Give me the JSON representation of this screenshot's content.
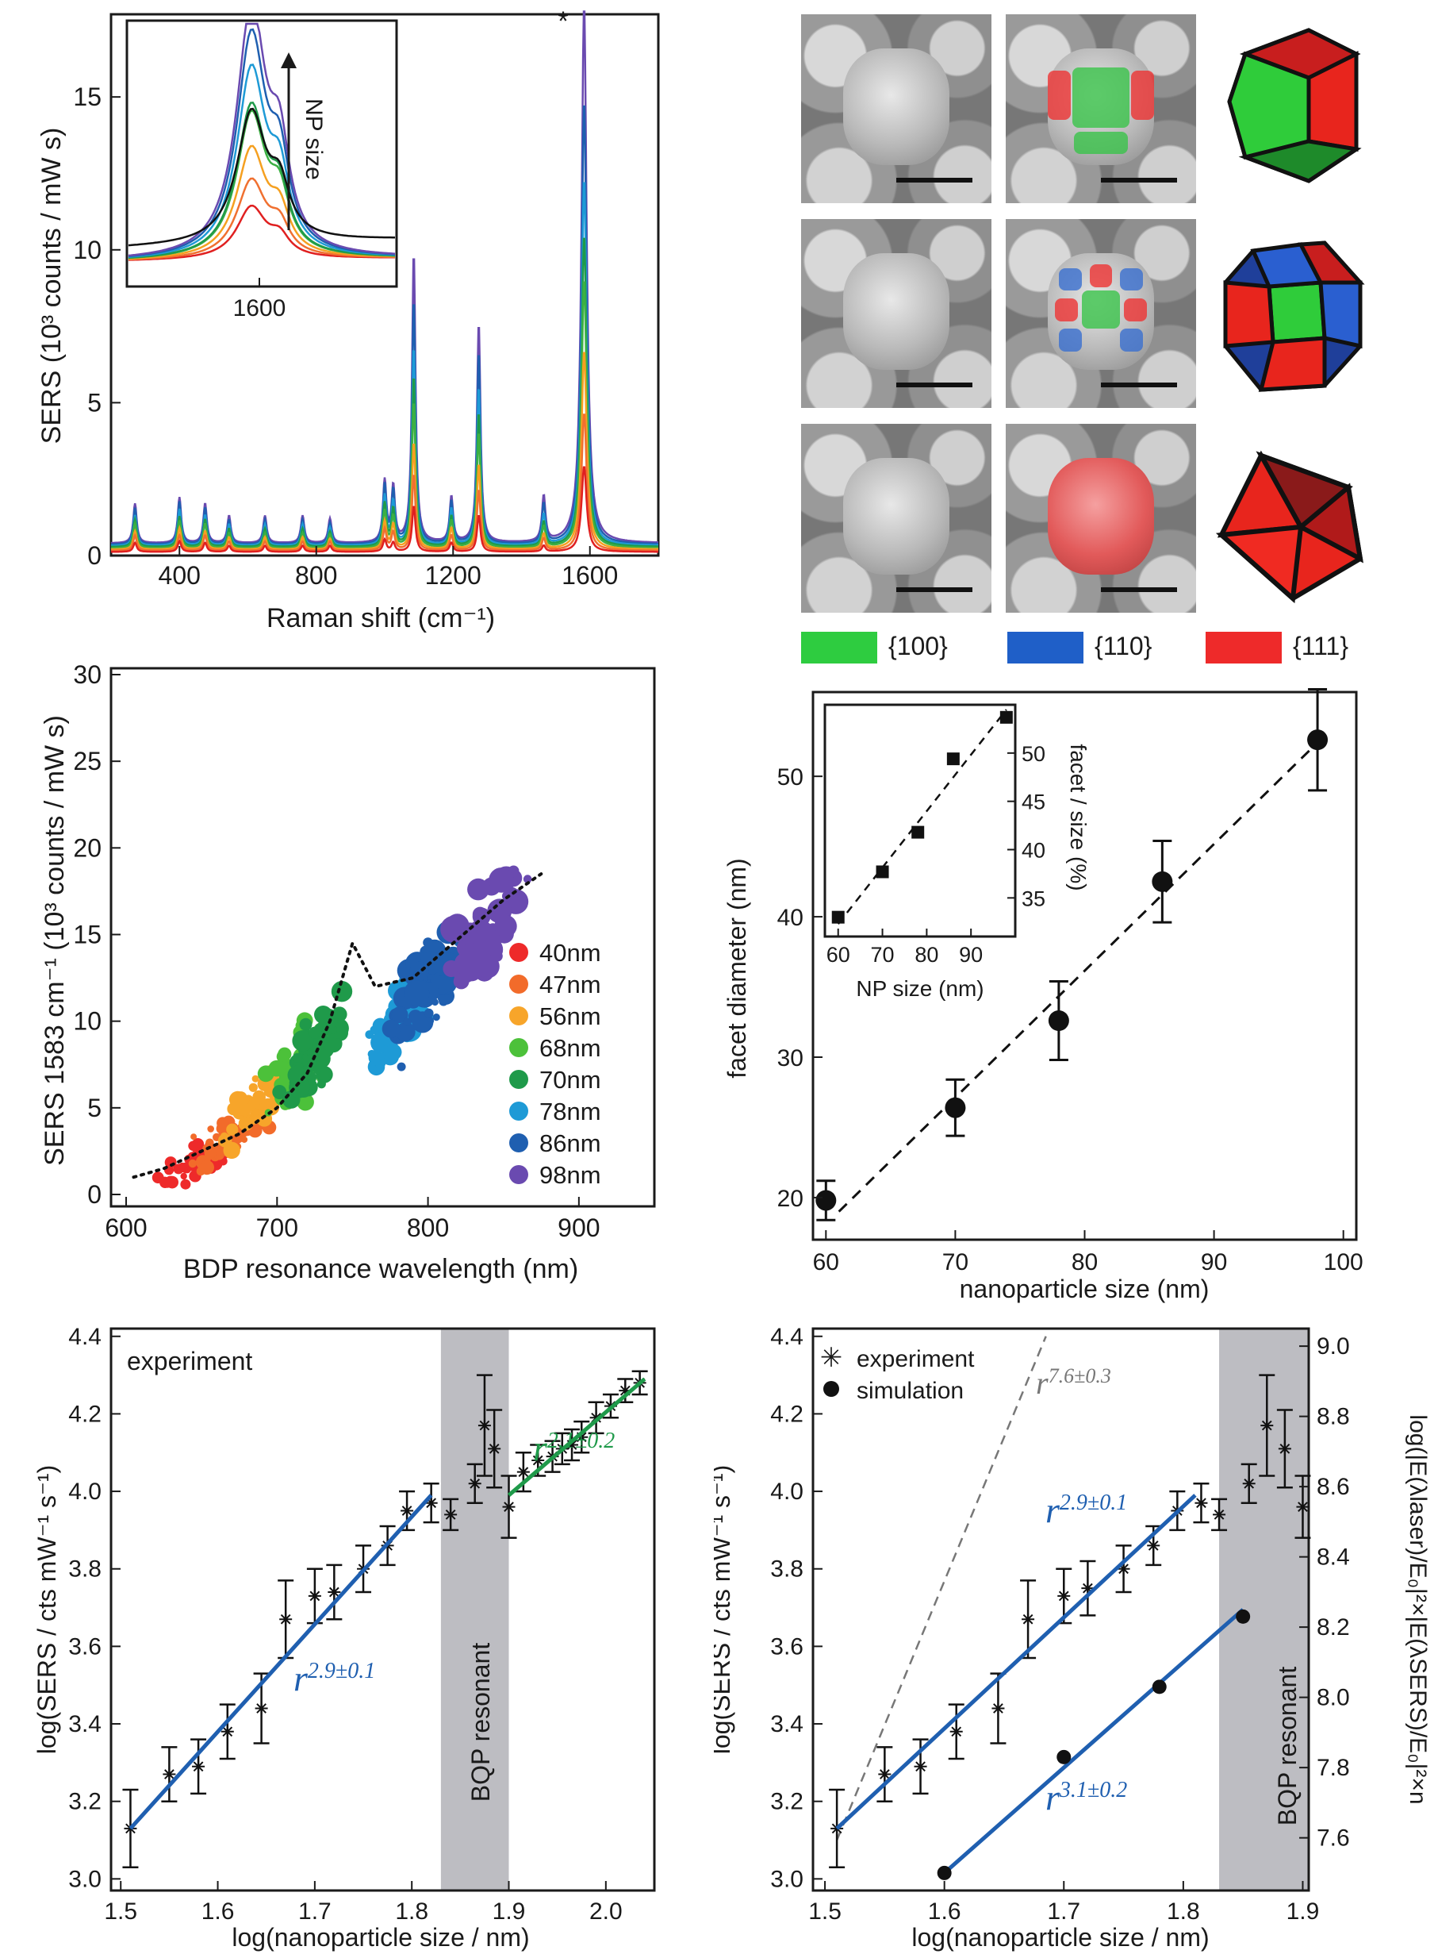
{
  "panel_a": {
    "ylabel": "SERS  (10³ counts / mW s)",
    "xlabel": "Raman shift (cm⁻¹)",
    "star": "*",
    "xticks": [
      "400",
      "800",
      "1200",
      "1600"
    ],
    "yticks": [
      "0",
      "5",
      "10",
      "15"
    ],
    "inset_xtick": "1600",
    "inset_label": "NP size",
    "colors": [
      "#e02020",
      "#f07030",
      "#f5a020",
      "#3cb043",
      "#1f9a4a",
      "#1e9ad6",
      "#1f5fb0",
      "#6a4ab0",
      "#111111"
    ]
  },
  "panel_b": {
    "legend": [
      {
        "label": "{100}",
        "color": "#2ecc40"
      },
      {
        "label": "{110}",
        "color": "#1f5fc8"
      },
      {
        "label": "{111}",
        "color": "#ee2a2a"
      }
    ]
  },
  "panel_c": {
    "ylabel": "SERS 1583 cm⁻¹ (10³ counts / mW s)",
    "xlabel": "BDP resonance wavelength (nm)",
    "xticks": [
      "600",
      "700",
      "800",
      "900"
    ],
    "yticks": [
      "0",
      "5",
      "10",
      "15",
      "20",
      "25",
      "30"
    ],
    "legend": [
      {
        "label": "40nm",
        "color": "#ee2a2a"
      },
      {
        "label": "47nm",
        "color": "#f26b2a"
      },
      {
        "label": "56nm",
        "color": "#f7a52a"
      },
      {
        "label": "68nm",
        "color": "#4cc13a"
      },
      {
        "label": "70nm",
        "color": "#1f9a4a"
      },
      {
        "label": "78nm",
        "color": "#1e9ad6"
      },
      {
        "label": "86nm",
        "color": "#1f5fb0"
      },
      {
        "label": "98nm",
        "color": "#6a4ab0"
      }
    ]
  },
  "panel_d": {
    "ylabel": "facet diameter (nm)",
    "xlabel": "nanoparticle size (nm)",
    "xticks": [
      "60",
      "70",
      "80",
      "90",
      "100"
    ],
    "yticks": [
      "20",
      "30",
      "40",
      "50"
    ],
    "inset_ylabel": "facet / size (%)",
    "inset_xlabel": "NP size (nm)",
    "inset_xticks": [
      "60",
      "70",
      "80",
      "90"
    ],
    "inset_yticks": [
      "35",
      "40",
      "45",
      "50"
    ]
  },
  "panel_e": {
    "ylabel": "log(SERS / cts mW⁻¹ s⁻¹)",
    "xlabel": "log(nanoparticle size / nm)",
    "label": "experiment",
    "band_label": "BQP resonant",
    "fit_blue": "r",
    "fit_blue_exp": "2.9±0.1",
    "fit_green": "r",
    "fit_green_exp": "2.1±0.2",
    "xticks": [
      "1.5",
      "1.6",
      "1.7",
      "1.8",
      "1.9",
      "2.0"
    ],
    "yticks": [
      "3.0",
      "3.2",
      "3.4",
      "3.6",
      "3.8",
      "4.0",
      "4.2",
      "4.4"
    ]
  },
  "panel_f": {
    "ylabel": "log(SERS / cts mW⁻¹ s⁻¹)",
    "ylabel_right": "log(|E(λlaser)/E₀|²×|E(λSERS)/E₀|²×n",
    "xlabel": "log(nanoparticle size / nm)",
    "legend_exp": "experiment",
    "legend_sim": "simulation",
    "band_label": "BQP resonant",
    "fit_gray": "r",
    "fit_gray_exp": "7.6±0.3",
    "fit_blue": "r",
    "fit_blue_exp": "2.9±0.1",
    "fit_sim": "r",
    "fit_sim_exp": "3.1±0.2",
    "xticks": [
      "1.5",
      "1.6",
      "1.7",
      "1.8",
      "1.9"
    ],
    "yticks": [
      "3.0",
      "3.2",
      "3.4",
      "3.6",
      "3.8",
      "4.0",
      "4.2",
      "4.4"
    ],
    "yticks_right": [
      "7.6",
      "7.8",
      "8.0",
      "8.2",
      "8.4",
      "8.6",
      "8.8",
      "9.0"
    ]
  },
  "chart_data": [
    {
      "type": "line",
      "panel": "a",
      "xlabel": "Raman shift (cm⁻¹)",
      "ylabel": "SERS  (10³ counts / mW s)",
      "xlim": [
        200,
        1800
      ],
      "ylim": [
        0,
        17.6
      ],
      "peaks": [
        {
          "x": 270,
          "heights": [
            0.3,
            0.5,
            0.6,
            0.8,
            0.9,
            1.0,
            1.2,
            1.3
          ]
        },
        {
          "x": 400,
          "heights": [
            0.35,
            0.5,
            0.7,
            0.9,
            1.0,
            1.2,
            1.4,
            1.5
          ]
        },
        {
          "x": 475,
          "heights": [
            0.3,
            0.5,
            0.6,
            0.8,
            0.9,
            1.0,
            1.2,
            1.3
          ]
        },
        {
          "x": 545,
          "heights": [
            0.2,
            0.3,
            0.4,
            0.5,
            0.6,
            0.7,
            0.8,
            0.9
          ]
        },
        {
          "x": 650,
          "heights": [
            0.2,
            0.3,
            0.4,
            0.5,
            0.6,
            0.7,
            0.8,
            0.9
          ]
        },
        {
          "x": 760,
          "heights": [
            0.2,
            0.3,
            0.4,
            0.5,
            0.6,
            0.7,
            0.8,
            0.9
          ]
        },
        {
          "x": 840,
          "heights": [
            0.2,
            0.3,
            0.35,
            0.45,
            0.5,
            0.6,
            0.7,
            0.8
          ]
        },
        {
          "x": 1000,
          "heights": [
            0.4,
            0.7,
            0.9,
            1.2,
            1.4,
            1.6,
            1.9,
            2.0
          ]
        },
        {
          "x": 1025,
          "heights": [
            0.3,
            0.6,
            0.8,
            1.0,
            1.2,
            1.4,
            1.7,
            1.8
          ]
        },
        {
          "x": 1085,
          "heights": [
            1.5,
            2.5,
            3.5,
            4.8,
            5.6,
            6.5,
            8.0,
            9.5
          ]
        },
        {
          "x": 1195,
          "heights": [
            0.3,
            0.5,
            0.7,
            0.9,
            1.0,
            1.2,
            1.4,
            1.5
          ]
        },
        {
          "x": 1275,
          "heights": [
            1.2,
            2.0,
            2.8,
            3.8,
            4.4,
            5.2,
            6.3,
            7.2
          ]
        },
        {
          "x": 1465,
          "heights": [
            0.2,
            0.4,
            0.5,
            0.7,
            0.8,
            1.0,
            1.3,
            1.5
          ]
        },
        {
          "x": 1583,
          "heights": [
            2.8,
            4.5,
            6.5,
            8.8,
            10.2,
            12.0,
            14.5,
            17.6
          ]
        }
      ],
      "series_colors": [
        "#e02020",
        "#f07030",
        "#f5a020",
        "#3cb043",
        "#1f9a4a",
        "#1e9ad6",
        "#1f5fb0",
        "#6a4ab0"
      ]
    },
    {
      "type": "scatter",
      "panel": "c",
      "xlabel": "BDP resonance wavelength (nm)",
      "ylabel": "SERS 1583 cm⁻¹ (10³ counts / mW s)",
      "xlim": [
        590,
        950
      ],
      "ylim": [
        0,
        30
      ],
      "series": [
        {
          "name": "40nm",
          "center": [
            650,
            2.0
          ],
          "spread": [
            35,
            1.6
          ]
        },
        {
          "name": "47nm",
          "center": [
            670,
            3.5
          ],
          "spread": [
            35,
            2.2
          ]
        },
        {
          "name": "56nm",
          "center": [
            690,
            5.5
          ],
          "spread": [
            30,
            2.6
          ]
        },
        {
          "name": "68nm",
          "center": [
            715,
            7.5
          ],
          "spread": [
            35,
            3.5
          ]
        },
        {
          "name": "70nm",
          "center": [
            725,
            8.5
          ],
          "spread": [
            30,
            3.5
          ]
        },
        {
          "name": "78nm",
          "center": [
            780,
            10.0
          ],
          "spread": [
            30,
            3.5
          ]
        },
        {
          "name": "86nm",
          "center": [
            800,
            12.0
          ],
          "spread": [
            35,
            4.5
          ]
        },
        {
          "name": "98nm",
          "center": [
            840,
            15.5
          ],
          "spread": [
            35,
            4.0
          ]
        }
      ],
      "trend": [
        [
          605,
          1.0
        ],
        [
          625,
          1.5
        ],
        [
          650,
          2.5
        ],
        [
          675,
          3.5
        ],
        [
          700,
          5.0
        ],
        [
          720,
          7.0
        ],
        [
          735,
          10.0
        ],
        [
          750,
          14.5
        ],
        [
          765,
          12.0
        ],
        [
          790,
          12.5
        ],
        [
          810,
          14.0
        ],
        [
          830,
          15.5
        ],
        [
          850,
          17.0
        ],
        [
          875,
          18.5
        ]
      ]
    },
    {
      "type": "scatter",
      "panel": "d",
      "xlabel": "nanoparticle size (nm)",
      "ylabel": "facet diameter (nm)",
      "xlim": [
        59,
        101
      ],
      "ylim": [
        17,
        56
      ],
      "points": [
        {
          "x": 60,
          "y": 19.8,
          "err": 1.4
        },
        {
          "x": 70,
          "y": 26.4,
          "err": 2.0
        },
        {
          "x": 78,
          "y": 32.6,
          "err": 2.8
        },
        {
          "x": 86,
          "y": 42.5,
          "err": 2.9
        },
        {
          "x": 98,
          "y": 52.6,
          "err": 3.6
        }
      ],
      "fit": [
        [
          61,
          19.0
        ],
        [
          98,
          52.4
        ]
      ],
      "inset": {
        "xlabel": "NP size (nm)",
        "ylabel": "facet / size (%)",
        "xlim": [
          57,
          100
        ],
        "ylim": [
          31,
          55
        ],
        "points": [
          [
            60,
            33.0
          ],
          [
            70,
            37.7
          ],
          [
            78,
            41.8
          ],
          [
            86,
            49.4
          ],
          [
            98,
            53.7
          ]
        ],
        "fit": [
          [
            60,
            32.3
          ],
          [
            98,
            54.5
          ]
        ]
      }
    },
    {
      "type": "scatter",
      "panel": "e",
      "xlabel": "log(nanoparticle size / nm)",
      "ylabel": "log(SERS / cts mW⁻¹ s⁻¹)",
      "xlim": [
        1.49,
        2.05
      ],
      "ylim": [
        2.97,
        4.42
      ],
      "band": [
        1.83,
        1.9
      ],
      "points": [
        [
          1.51,
          3.13,
          0.1
        ],
        [
          1.55,
          3.27,
          0.07
        ],
        [
          1.58,
          3.29,
          0.07
        ],
        [
          1.61,
          3.38,
          0.07
        ],
        [
          1.645,
          3.44,
          0.09
        ],
        [
          1.67,
          3.67,
          0.1
        ],
        [
          1.7,
          3.73,
          0.07
        ],
        [
          1.72,
          3.74,
          0.07
        ],
        [
          1.75,
          3.8,
          0.06
        ],
        [
          1.775,
          3.86,
          0.05
        ],
        [
          1.795,
          3.95,
          0.05
        ],
        [
          1.82,
          3.97,
          0.05
        ],
        [
          1.84,
          3.94,
          0.04
        ],
        [
          1.865,
          4.02,
          0.05
        ],
        [
          1.875,
          4.17,
          0.13
        ],
        [
          1.885,
          4.11,
          0.1
        ],
        [
          1.9,
          3.96,
          0.08
        ],
        [
          1.915,
          4.05,
          0.05
        ],
        [
          1.93,
          4.08,
          0.04
        ],
        [
          1.945,
          4.09,
          0.04
        ],
        [
          1.955,
          4.11,
          0.04
        ],
        [
          1.965,
          4.12,
          0.04
        ],
        [
          1.975,
          4.14,
          0.04
        ],
        [
          1.99,
          4.19,
          0.04
        ],
        [
          2.005,
          4.22,
          0.03
        ],
        [
          2.02,
          4.26,
          0.03
        ],
        [
          2.035,
          4.28,
          0.03
        ]
      ],
      "fit_blue": [
        [
          1.51,
          3.13
        ],
        [
          1.82,
          3.99
        ]
      ],
      "fit_green": [
        [
          1.9,
          3.99
        ],
        [
          2.04,
          4.29
        ]
      ]
    },
    {
      "type": "scatter",
      "panel": "f",
      "xlabel": "log(nanoparticle size / nm)",
      "ylabel": "log(SERS / cts mW⁻¹ s⁻¹)",
      "xlim": [
        1.49,
        1.905
      ],
      "ylim": [
        2.97,
        4.42
      ],
      "ylim_right": [
        7.45,
        9.05
      ],
      "band": [
        1.83,
        1.905
      ],
      "experiment": [
        [
          1.51,
          3.13,
          0.1
        ],
        [
          1.55,
          3.27,
          0.07
        ],
        [
          1.58,
          3.29,
          0.07
        ],
        [
          1.61,
          3.38,
          0.07
        ],
        [
          1.645,
          3.44,
          0.09
        ],
        [
          1.67,
          3.67,
          0.1
        ],
        [
          1.7,
          3.73,
          0.07
        ],
        [
          1.72,
          3.75,
          0.07
        ],
        [
          1.75,
          3.8,
          0.06
        ],
        [
          1.775,
          3.86,
          0.05
        ],
        [
          1.795,
          3.95,
          0.05
        ],
        [
          1.815,
          3.97,
          0.05
        ],
        [
          1.83,
          3.94,
          0.04
        ],
        [
          1.855,
          4.02,
          0.05
        ],
        [
          1.87,
          4.17,
          0.13
        ],
        [
          1.885,
          4.11,
          0.1
        ],
        [
          1.9,
          3.96,
          0.08
        ]
      ],
      "simulation": [
        [
          1.6,
          7.5
        ],
        [
          1.7,
          7.83
        ],
        [
          1.78,
          8.03
        ],
        [
          1.85,
          8.23
        ]
      ],
      "fit_gray": [
        [
          1.51,
          3.1
        ],
        [
          1.685,
          4.4
        ]
      ],
      "fit_blue": [
        [
          1.51,
          3.13
        ],
        [
          1.81,
          3.99
        ]
      ],
      "fit_sim": [
        [
          1.6,
          7.5
        ],
        [
          1.85,
          8.25
        ]
      ]
    }
  ]
}
